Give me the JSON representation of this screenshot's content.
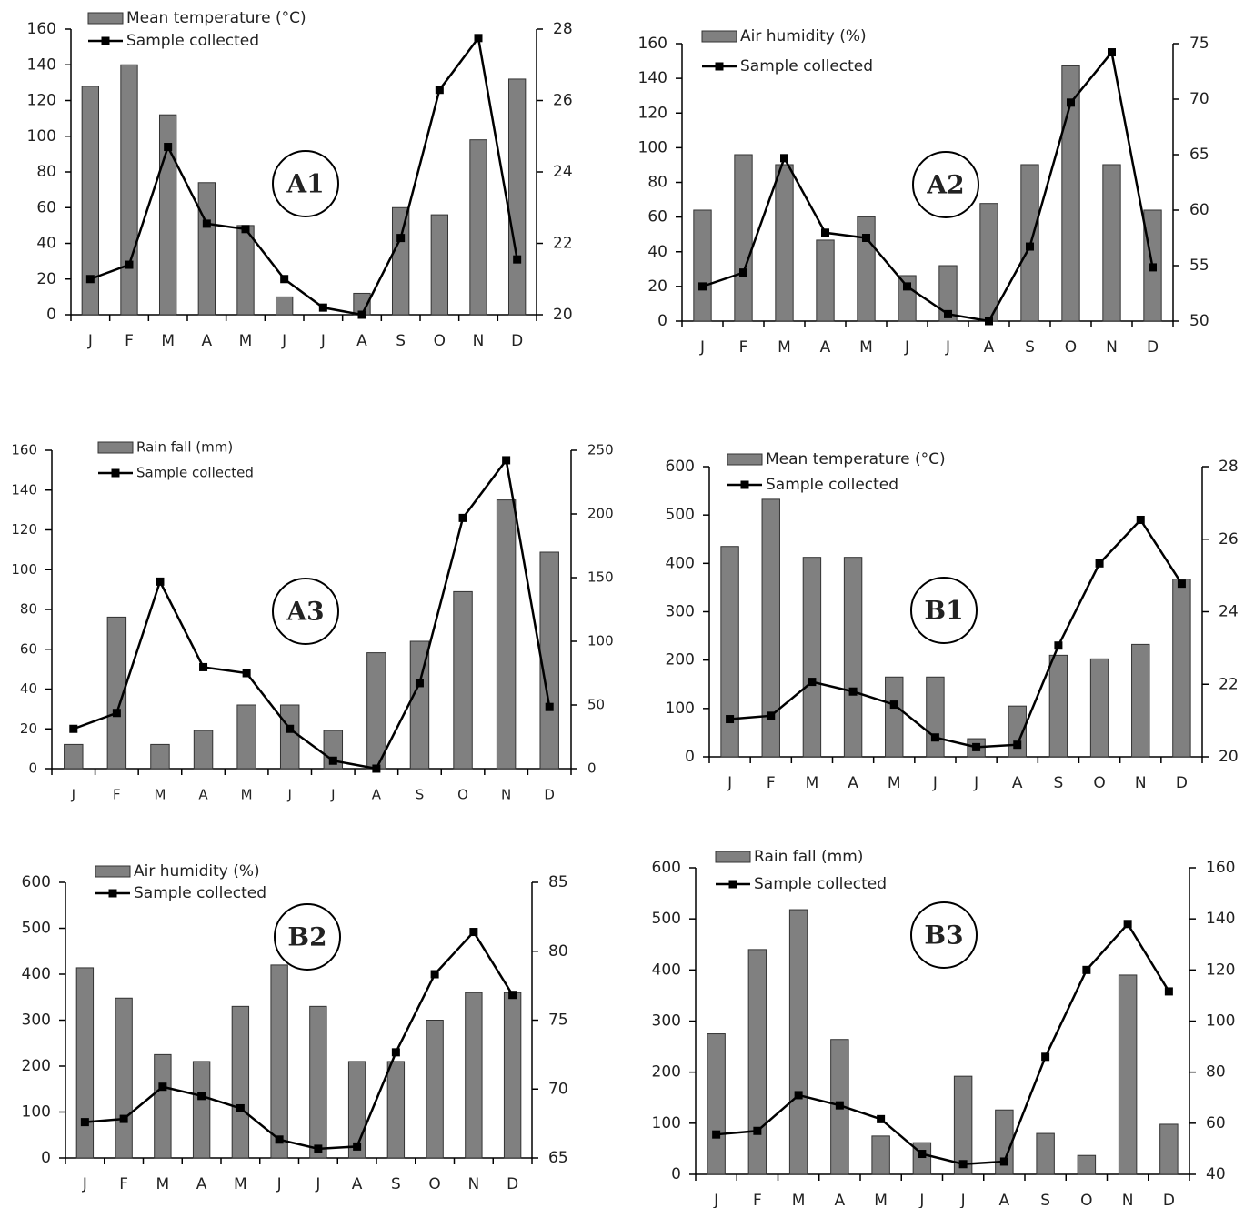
{
  "chart_data": [
    {
      "type": "combo",
      "annotation": "A1",
      "categories": [
        "J",
        "F",
        "M",
        "A",
        "M",
        "J",
        "J",
        "A",
        "S",
        "O",
        "N",
        "D"
      ],
      "series": [
        {
          "name": "Mean temperature (°C)",
          "kind": "bar",
          "axis": "y2",
          "color": "#808080",
          "values": [
            26.4,
            27.0,
            25.6,
            23.7,
            22.5,
            20.5,
            20.0,
            20.6,
            23.0,
            22.8,
            24.9,
            26.6
          ]
        },
        {
          "name": "Sample collected",
          "kind": "line",
          "axis": "y",
          "color": "#000000",
          "values": [
            20,
            28,
            94,
            51,
            48,
            20,
            4,
            0,
            43,
            126,
            155,
            31
          ]
        }
      ],
      "ylim": [
        0,
        160
      ],
      "yticks": [
        0,
        20,
        40,
        60,
        80,
        100,
        120,
        140,
        160
      ],
      "y2lim": [
        20,
        28
      ],
      "y2ticks": [
        20,
        22,
        24,
        26,
        28
      ],
      "legend": "upper left",
      "grid": false
    },
    {
      "type": "combo",
      "annotation": "A2",
      "categories": [
        "J",
        "F",
        "M",
        "A",
        "M",
        "J",
        "J",
        "A",
        "S",
        "O",
        "N",
        "D"
      ],
      "series": [
        {
          "name": "Air humidity (%)",
          "kind": "bar",
          "axis": "y2",
          "color": "#808080",
          "values": [
            60.0,
            65.0,
            64.1,
            57.3,
            59.4,
            54.1,
            55.0,
            60.6,
            64.1,
            73.0,
            64.1,
            60.0
          ]
        },
        {
          "name": "Sample collected",
          "kind": "line",
          "axis": "y",
          "color": "#000000",
          "values": [
            20,
            28,
            94,
            51,
            48,
            20,
            4,
            0,
            43,
            126,
            155,
            31
          ]
        }
      ],
      "ylim": [
        0,
        160
      ],
      "yticks": [
        0,
        20,
        40,
        60,
        80,
        100,
        120,
        140,
        160
      ],
      "y2lim": [
        50,
        75
      ],
      "y2ticks": [
        50,
        55,
        60,
        65,
        70,
        75
      ],
      "legend": "upper left",
      "grid": false
    },
    {
      "type": "combo",
      "annotation": "A3",
      "categories": [
        "J",
        "F",
        "M",
        "A",
        "M",
        "J",
        "J",
        "A",
        "S",
        "O",
        "N",
        "D"
      ],
      "series": [
        {
          "name": "Rain fall (mm)",
          "kind": "bar",
          "axis": "y2",
          "color": "#808080",
          "values": [
            19,
            119,
            19,
            30,
            50,
            50,
            30,
            91,
            100,
            139,
            211,
            170
          ]
        },
        {
          "name": "Sample collected",
          "kind": "line",
          "axis": "y",
          "color": "#000000",
          "values": [
            20,
            28,
            94,
            51,
            48,
            20,
            4,
            0,
            43,
            126,
            155,
            31
          ]
        }
      ],
      "ylim": [
        0,
        160
      ],
      "yticks": [
        0,
        20,
        40,
        60,
        80,
        100,
        120,
        140,
        160
      ],
      "y2lim": [
        0,
        250
      ],
      "y2ticks": [
        0,
        50,
        100,
        150,
        200,
        250
      ],
      "legend": "upper left",
      "grid": false
    },
    {
      "type": "combo",
      "annotation": "B1",
      "categories": [
        "J",
        "F",
        "M",
        "A",
        "M",
        "J",
        "J",
        "A",
        "S",
        "O",
        "N",
        "D"
      ],
      "series": [
        {
          "name": "Mean temperature (°C)",
          "kind": "bar",
          "axis": "y2",
          "color": "#808080",
          "values": [
            25.8,
            27.1,
            25.5,
            25.5,
            22.2,
            22.2,
            20.5,
            21.4,
            22.8,
            22.7,
            23.1,
            24.9
          ]
        },
        {
          "name": "Sample collected",
          "kind": "line",
          "axis": "y",
          "color": "#000000",
          "values": [
            78,
            85,
            155,
            135,
            108,
            40,
            20,
            25,
            230,
            400,
            490,
            358
          ]
        }
      ],
      "ylim": [
        0,
        600
      ],
      "yticks": [
        0,
        100,
        200,
        300,
        400,
        500,
        600
      ],
      "y2lim": [
        20,
        28
      ],
      "y2ticks": [
        20,
        22,
        24,
        26,
        28
      ],
      "legend": "upper left",
      "grid": false
    },
    {
      "type": "combo",
      "annotation": "B2",
      "categories": [
        "J",
        "F",
        "M",
        "A",
        "M",
        "J",
        "J",
        "A",
        "S",
        "O",
        "N",
        "D"
      ],
      "series": [
        {
          "name": "Air humidity (%)",
          "kind": "bar",
          "axis": "y2",
          "color": "#808080",
          "values": [
            78.8,
            76.6,
            72.5,
            72.0,
            76.0,
            79.0,
            76.0,
            72.0,
            72.0,
            75.0,
            77.0,
            77.0
          ]
        },
        {
          "name": "Sample collected",
          "kind": "line",
          "axis": "y",
          "color": "#000000",
          "values": [
            78,
            85,
            155,
            135,
            108,
            40,
            20,
            25,
            230,
            400,
            492,
            355
          ]
        }
      ],
      "ylim": [
        0,
        600
      ],
      "yticks": [
        0,
        100,
        200,
        300,
        400,
        500,
        600
      ],
      "y2lim": [
        65,
        85
      ],
      "y2ticks": [
        65,
        70,
        75,
        80,
        85
      ],
      "legend": "upper left",
      "grid": false
    },
    {
      "type": "combo",
      "annotation": "B3",
      "categories": [
        "J",
        "F",
        "M",
        "A",
        "M",
        "J",
        "J",
        "A",
        "S",
        "O",
        "N",
        "D"
      ],
      "series": [
        {
          "name": "Rain fall (mm)",
          "kind": "bar",
          "axis": "y2",
          "color": "#808080",
          "values": [
            95,
            128,
            143.6,
            92.8,
            55,
            52.4,
            78.4,
            65.2,
            56,
            47.4,
            118,
            59.6
          ]
        },
        {
          "name": "Sample collected",
          "kind": "line",
          "axis": "y",
          "color": "#000000",
          "values": [
            78,
            85,
            155,
            135,
            108,
            40,
            20,
            25,
            230,
            400,
            490,
            358
          ]
        }
      ],
      "ylim": [
        0,
        600
      ],
      "yticks": [
        0,
        100,
        200,
        300,
        400,
        500,
        600
      ],
      "y2lim": [
        40,
        160
      ],
      "y2ticks": [
        40,
        60,
        80,
        100,
        120,
        140,
        160
      ],
      "legend": "upper left",
      "grid": false
    }
  ]
}
